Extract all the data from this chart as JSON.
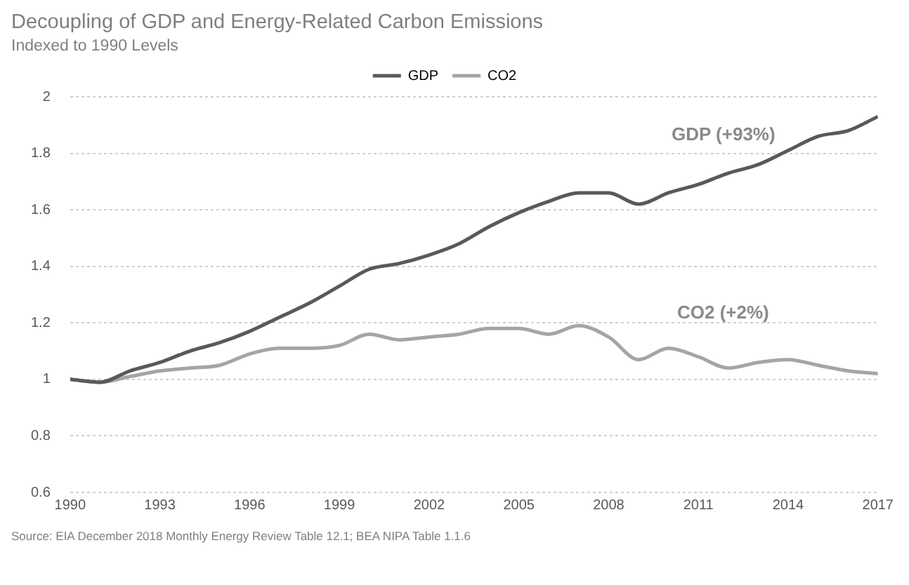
{
  "chart_data": {
    "type": "line",
    "title": "Decoupling of GDP and Energy-Related Carbon Emissions",
    "subtitle": "Indexed to 1990 Levels",
    "x": [
      1990,
      1991,
      1992,
      1993,
      1994,
      1995,
      1996,
      1997,
      1998,
      1999,
      2000,
      2001,
      2002,
      2003,
      2004,
      2005,
      2006,
      2007,
      2008,
      2009,
      2010,
      2011,
      2012,
      2013,
      2014,
      2015,
      2016,
      2017
    ],
    "series": [
      {
        "name": "GDP",
        "color": "#595959",
        "values": [
          1.0,
          0.99,
          1.03,
          1.06,
          1.1,
          1.13,
          1.17,
          1.22,
          1.27,
          1.33,
          1.39,
          1.41,
          1.44,
          1.48,
          1.54,
          1.59,
          1.63,
          1.66,
          1.66,
          1.62,
          1.66,
          1.69,
          1.73,
          1.76,
          1.81,
          1.86,
          1.88,
          1.93
        ]
      },
      {
        "name": "CO2",
        "color": "#a5a5a5",
        "values": [
          1.0,
          0.99,
          1.01,
          1.03,
          1.04,
          1.05,
          1.09,
          1.11,
          1.11,
          1.12,
          1.16,
          1.14,
          1.15,
          1.16,
          1.18,
          1.18,
          1.16,
          1.19,
          1.15,
          1.07,
          1.11,
          1.08,
          1.04,
          1.06,
          1.07,
          1.05,
          1.03,
          1.02
        ]
      }
    ],
    "xlim": [
      1990,
      2017
    ],
    "xticks": [
      1990,
      1993,
      1996,
      1999,
      2002,
      2005,
      2008,
      2011,
      2014,
      2017
    ],
    "ylim": [
      0.6,
      2
    ],
    "yticks": [
      0.6,
      0.8,
      1,
      1.2,
      1.4,
      1.6,
      1.8,
      2
    ],
    "grid": "y",
    "legend": "top",
    "marker": "none",
    "line_style": "solid",
    "annotations": [
      "GDP (+93%)",
      "CO2 (+2%)",
      "Source: EIA December 2018 Monthly Energy Review Table 12.1; BEA NIPA Table 1.1.6"
    ]
  }
}
